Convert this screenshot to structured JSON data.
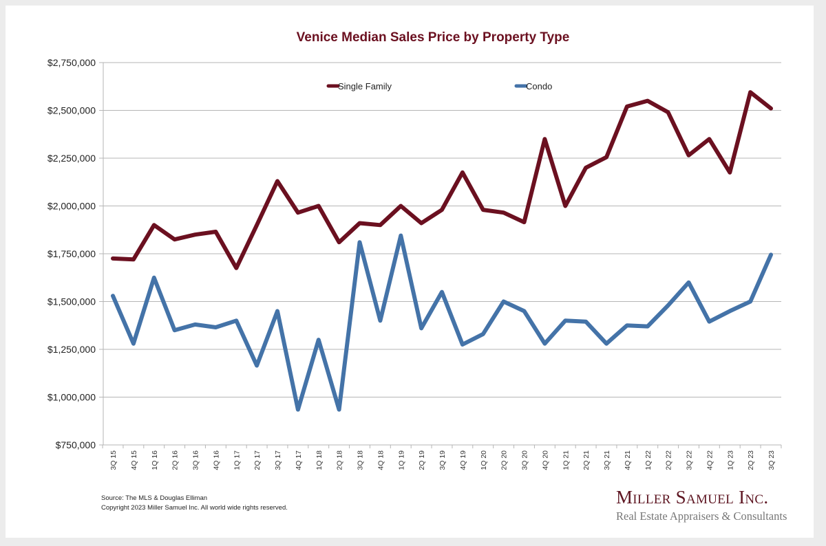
{
  "chart_data": {
    "type": "line",
    "title": "Venice Median Sales Price by Property Type",
    "xlabel": "",
    "ylabel": "",
    "ylim": [
      750000,
      2750000
    ],
    "yticks": [
      750000,
      1000000,
      1250000,
      1500000,
      1750000,
      2000000,
      2250000,
      2500000,
      2750000
    ],
    "ytick_labels": [
      "$750,000",
      "$1,000,000",
      "$1,250,000",
      "$1,500,000",
      "$1,750,000",
      "$2,000,000",
      "$2,250,000",
      "$2,500,000",
      "$2,750,000"
    ],
    "grid": true,
    "legend_position": "top-center",
    "categories": [
      "3Q 15",
      "4Q 15",
      "1Q 16",
      "2Q 16",
      "3Q 16",
      "4Q 16",
      "1Q 17",
      "2Q 17",
      "3Q 17",
      "4Q 17",
      "1Q 18",
      "2Q 18",
      "3Q 18",
      "4Q 18",
      "1Q 19",
      "2Q 19",
      "3Q 19",
      "4Q 19",
      "1Q 20",
      "2Q 20",
      "3Q 20",
      "4Q 20",
      "1Q 21",
      "2Q 21",
      "3Q 21",
      "4Q 21",
      "1Q 22",
      "2Q 22",
      "3Q 22",
      "4Q 22",
      "1Q 23",
      "2Q 23",
      "3Q 23"
    ],
    "series": [
      {
        "name": "Single Family",
        "color": "#6b1020",
        "values": [
          1725000,
          1720000,
          1900000,
          1825000,
          1850000,
          1865000,
          1675000,
          1900000,
          2130000,
          1965000,
          2000000,
          1810000,
          1910000,
          1900000,
          2000000,
          1910000,
          1980000,
          2175000,
          1980000,
          1965000,
          1915000,
          2350000,
          2000000,
          2200000,
          2255000,
          2520000,
          2550000,
          2490000,
          2265000,
          2350000,
          2175000,
          2595000,
          2510000
        ]
      },
      {
        "name": "Condo",
        "color": "#4473a8",
        "values": [
          1530000,
          1280000,
          1625000,
          1350000,
          1380000,
          1365000,
          1400000,
          1165000,
          1450000,
          935000,
          1300000,
          935000,
          1810000,
          1400000,
          1845000,
          1360000,
          1550000,
          1275000,
          1330000,
          1500000,
          1450000,
          1280000,
          1400000,
          1395000,
          1280000,
          1375000,
          1370000,
          1480000,
          1600000,
          1395000,
          1450000,
          1500000,
          1745000
        ]
      }
    ]
  },
  "footer": {
    "source": "Source: The MLS & Douglas Elliman",
    "copyright": "Copyright 2023 Miller Samuel Inc.  All world wide rights reserved."
  },
  "logo": {
    "name": "Miller Samuel Inc.",
    "tagline": "Real Estate Appraisers & Consultants"
  }
}
